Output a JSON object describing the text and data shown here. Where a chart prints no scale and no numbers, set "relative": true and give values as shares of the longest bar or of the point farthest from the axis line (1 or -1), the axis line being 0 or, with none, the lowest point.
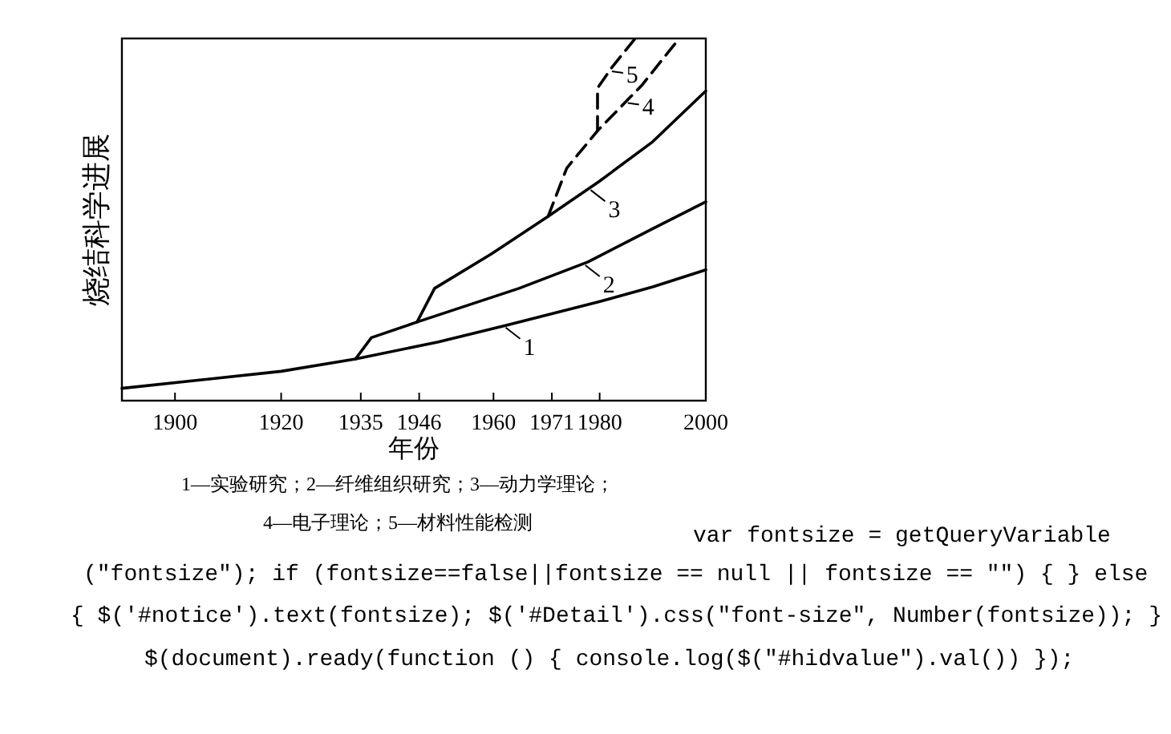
{
  "chart_data": {
    "type": "line",
    "relative": true,
    "xlabel": "年份",
    "ylabel": "烧结科学进展",
    "xlim": [
      1890,
      2000
    ],
    "xticks": [
      1900,
      1920,
      1935,
      1946,
      1960,
      1971,
      1980,
      2000
    ],
    "grid": false,
    "legend": "right",
    "marker": "none",
    "series": [
      {
        "name": "1",
        "color": "#000000",
        "line_style": "solid",
        "x": [
          1890,
          1920,
          1934,
          1949.6,
          1962.7,
          1979.9,
          1990,
          2000
        ],
        "values": [
          0.034,
          0.081,
          0.115,
          0.162,
          0.209,
          0.273,
          0.314,
          0.361
        ]
      },
      {
        "name": "2",
        "color": "#000000",
        "line_style": "solid",
        "x": [
          1934,
          1937,
          1945.6,
          1964.8,
          1977.8,
          1990,
          2000
        ],
        "values": [
          0.115,
          0.174,
          0.217,
          0.31,
          0.383,
          0.475,
          0.549
        ]
      },
      {
        "name": "3",
        "color": "#000000",
        "line_style": "solid",
        "x": [
          1945.6,
          1948.9,
          1959.7,
          1970.3,
          1979.9,
          1990,
          2000
        ],
        "values": [
          0.217,
          0.31,
          0.406,
          0.509,
          0.605,
          0.715,
          0.855
        ]
      },
      {
        "name": "4",
        "color": "#000000",
        "line_style": "dashed",
        "x": [
          1970.3,
          1973.8,
          1979.6,
          1987.9,
          1995
        ],
        "values": [
          0.509,
          0.642,
          0.745,
          0.87,
          1.0
        ]
      },
      {
        "name": "5",
        "color": "#000000",
        "line_style": "dashed",
        "x": [
          1979.6,
          1979.6,
          1982.4,
          1986.7
        ],
        "values": [
          0.745,
          0.863,
          0.922,
          1.0
        ]
      }
    ],
    "annotations": [
      "1—实验研究；2—纤维组织研究；3—动力学理论；",
      "4—电子理论；5—材料性能检测",
      "var fontsize = getQueryVariable",
      "(\"fontsize\"); if (fontsize==false||fontsize == null || fontsize == \"\") { } else",
      "{ $('#notice').text(fontsize); $('#Detail').css(\"font-size\", Number(fontsize)); }",
      "$(document).ready(function () { console.log($(\"#hidvalue\").val()) });"
    ]
  }
}
